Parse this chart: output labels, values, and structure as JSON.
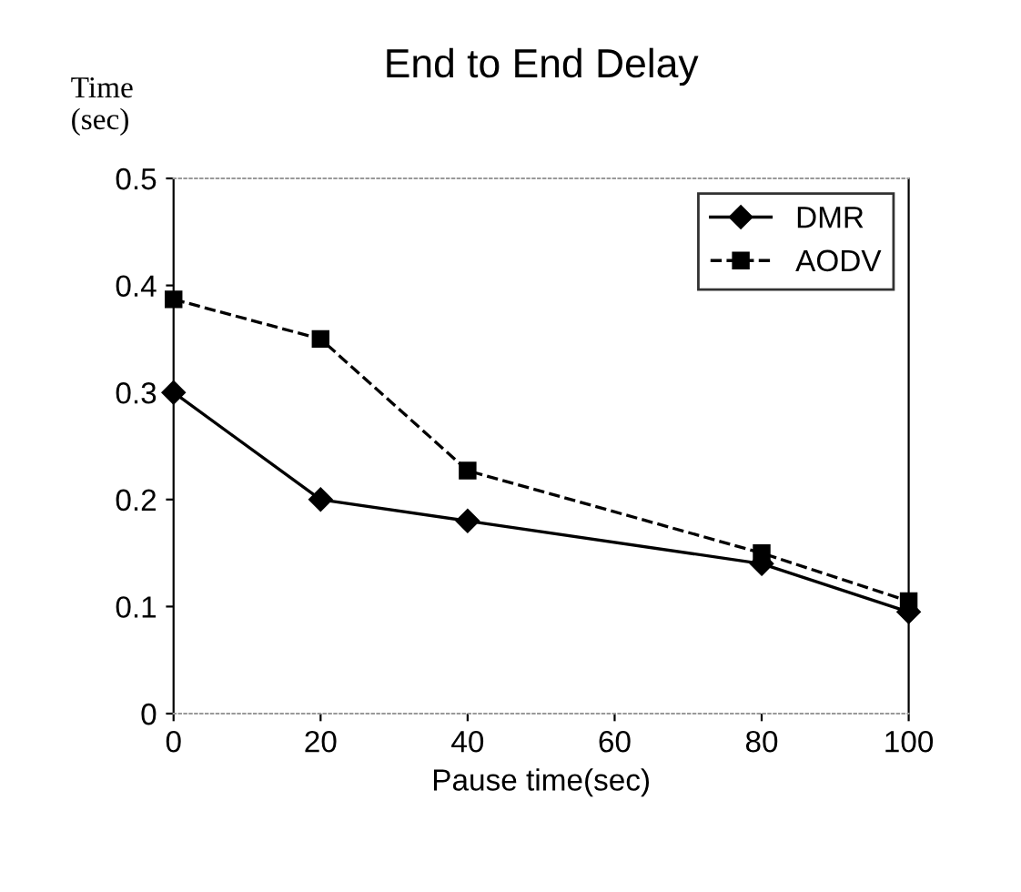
{
  "chart_data": {
    "type": "line",
    "title": "End to End Delay",
    "xlabel": "Pause time(sec)",
    "ylabel": "Time\n(sec)",
    "x": [
      0,
      20,
      40,
      80,
      100
    ],
    "series": [
      {
        "name": "DMR",
        "color": "#000000",
        "values": [
          0.3,
          0.2,
          0.18,
          0.14,
          0.095
        ],
        "marker": "diamond",
        "line_style": "solid"
      },
      {
        "name": "AODV",
        "color": "#000000",
        "values": [
          0.387,
          0.35,
          0.227,
          0.15,
          0.105
        ],
        "marker": "square",
        "line_style": "dashed"
      }
    ],
    "xlim": [
      0,
      100
    ],
    "xticks": [
      0,
      20,
      40,
      60,
      80,
      100
    ],
    "ylim": [
      0,
      0.5
    ],
    "yticks": [
      0,
      0.1,
      0.2,
      0.3,
      0.4,
      0.5
    ],
    "grid": false,
    "legend": "top right"
  }
}
